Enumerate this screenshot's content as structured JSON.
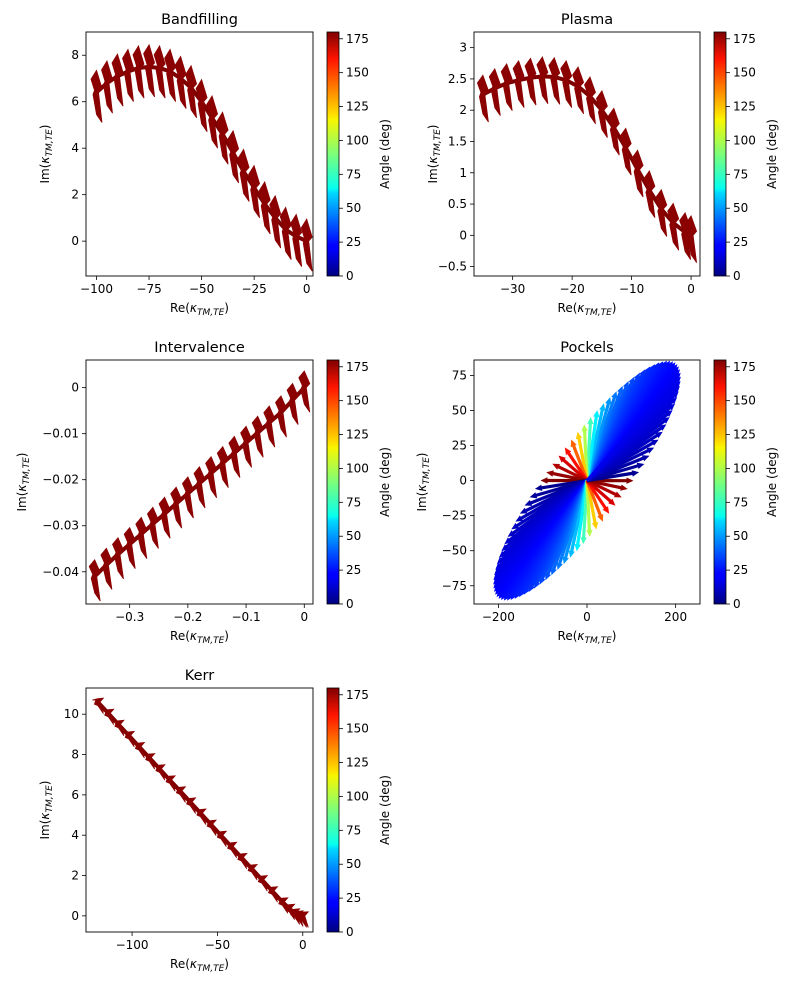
{
  "colorbar": {
    "label": "Angle (deg)",
    "ticks": [
      0,
      25,
      50,
      75,
      100,
      125,
      150,
      175
    ],
    "range": [
      0,
      180
    ],
    "colormap": "jet"
  },
  "chart_data": [
    {
      "type": "quiver",
      "title": "Bandfilling",
      "xlabel": "Re(κ_TM,TE)",
      "ylabel": "Im(κ_TM,TE)",
      "xlim": [
        -105,
        3
      ],
      "ylim": [
        -1.5,
        9
      ],
      "xticks": [
        -100,
        -75,
        -50,
        -25,
        0
      ],
      "yticks": [
        0,
        2,
        4,
        6,
        8
      ],
      "grid": false,
      "x": [
        -100,
        -95,
        -90,
        -85,
        -80,
        -75,
        -70,
        -65,
        -60,
        -55,
        -50,
        -45,
        -40,
        -35,
        -30,
        -25,
        -20,
        -15,
        -10,
        -5,
        0
      ],
      "y": [
        6.4,
        6.8,
        7.1,
        7.3,
        7.45,
        7.5,
        7.45,
        7.3,
        7.0,
        6.6,
        6.0,
        5.3,
        4.6,
        3.8,
        3.0,
        2.3,
        1.6,
        1.0,
        0.5,
        0.2,
        0.0
      ],
      "angle": [
        178,
        178,
        178,
        178,
        178,
        178,
        178,
        178,
        178,
        178,
        178,
        178,
        178,
        178,
        178,
        178,
        178,
        178,
        178,
        178,
        178
      ],
      "arrow_span": 1.9
    },
    {
      "type": "quiver",
      "title": "Plasma",
      "xlabel": "Re(κ_TM,TE)",
      "ylabel": "Im(κ_TM,TE)",
      "xlim": [
        -36.5,
        1.5
      ],
      "ylim": [
        -0.65,
        3.25
      ],
      "xticks": [
        -30,
        -20,
        -10,
        0
      ],
      "yticks": [
        -0.5,
        0.0,
        0.5,
        1.0,
        1.5,
        2.0,
        2.5,
        3.0
      ],
      "grid": false,
      "x": [
        -35,
        -33,
        -31,
        -29,
        -27,
        -25,
        -23,
        -21,
        -19,
        -17,
        -15,
        -13,
        -11,
        -9,
        -7,
        -5,
        -3,
        -1,
        0
      ],
      "y": [
        2.25,
        2.35,
        2.43,
        2.48,
        2.52,
        2.54,
        2.53,
        2.48,
        2.38,
        2.22,
        2.0,
        1.72,
        1.4,
        1.05,
        0.72,
        0.42,
        0.2,
        0.05,
        0.0
      ],
      "angle": [
        178,
        178,
        178,
        178,
        178,
        178,
        178,
        178,
        178,
        178,
        178,
        178,
        178,
        178,
        178,
        178,
        178,
        178,
        178
      ],
      "arrow_span": 0.62
    },
    {
      "type": "quiver",
      "title": "Intervalence",
      "xlabel": "Re(κ_TM,TE)",
      "ylabel": "Im(κ_TM,TE)",
      "xlim": [
        -0.375,
        0.015
      ],
      "ylim": [
        -0.047,
        0.006
      ],
      "xticks": [
        -0.3,
        -0.2,
        -0.1,
        0.0
      ],
      "yticks": [
        -0.04,
        -0.03,
        -0.02,
        -0.01,
        0.0
      ],
      "grid": false,
      "x": [
        -0.36,
        -0.34,
        -0.32,
        -0.3,
        -0.28,
        -0.26,
        -0.24,
        -0.22,
        -0.2,
        -0.18,
        -0.16,
        -0.14,
        -0.12,
        -0.1,
        -0.08,
        -0.06,
        -0.04,
        -0.02,
        0.0
      ],
      "y": [
        -0.041,
        -0.0385,
        -0.0362,
        -0.034,
        -0.0318,
        -0.0296,
        -0.0274,
        -0.0252,
        -0.023,
        -0.0208,
        -0.0186,
        -0.0164,
        -0.0142,
        -0.012,
        -0.0098,
        -0.0076,
        -0.0054,
        -0.0027,
        0.0
      ],
      "angle": [
        178,
        178,
        178,
        178,
        178,
        178,
        178,
        178,
        178,
        178,
        178,
        178,
        178,
        178,
        178,
        178,
        178,
        178,
        178
      ],
      "arrow_span": 0.0072
    },
    {
      "type": "quiver",
      "title": "Pockels",
      "xlabel": "Re(κ_TM,TE)",
      "ylabel": "Im(κ_TM,TE)",
      "xlim": [
        -255,
        255
      ],
      "ylim": [
        -88,
        86
      ],
      "xticks": [
        -200,
        0,
        200
      ],
      "yticks": [
        -75,
        -50,
        -25,
        0,
        25,
        50,
        75
      ],
      "grid": false,
      "ellipse": {
        "semi_major": 225,
        "semi_minor": 40,
        "tilt_deg": 20,
        "n_arrows": 90
      },
      "angle_range": [
        0,
        180
      ]
    },
    {
      "type": "quiver",
      "title": "Kerr",
      "xlabel": "Re(κ_TM,TE)",
      "ylabel": "Im(κ_TM,TE)",
      "xlim": [
        -127,
        6
      ],
      "ylim": [
        -0.8,
        11.3
      ],
      "xticks": [
        -100,
        -50,
        0
      ],
      "yticks": [
        0,
        2,
        4,
        6,
        8,
        10
      ],
      "grid": false,
      "x": [
        -120,
        -114,
        -108,
        -102,
        -96,
        -90,
        -84,
        -78,
        -72,
        -66,
        -60,
        -54,
        -48,
        -42,
        -36,
        -30,
        -24,
        -18,
        -12,
        -8,
        -5,
        -3,
        -1,
        0
      ],
      "y": [
        10.6,
        10.05,
        9.5,
        8.95,
        8.4,
        7.85,
        7.3,
        6.75,
        6.2,
        5.65,
        5.1,
        4.55,
        4.0,
        3.45,
        2.9,
        2.35,
        1.8,
        1.25,
        0.7,
        0.38,
        0.15,
        0.05,
        0.0,
        0.0
      ],
      "angle": [
        178,
        178,
        178,
        178,
        178,
        178,
        178,
        178,
        178,
        178,
        178,
        178,
        178,
        178,
        178,
        178,
        178,
        178,
        178,
        178,
        178,
        178,
        178,
        178
      ],
      "arrow_span": 0.35
    }
  ]
}
